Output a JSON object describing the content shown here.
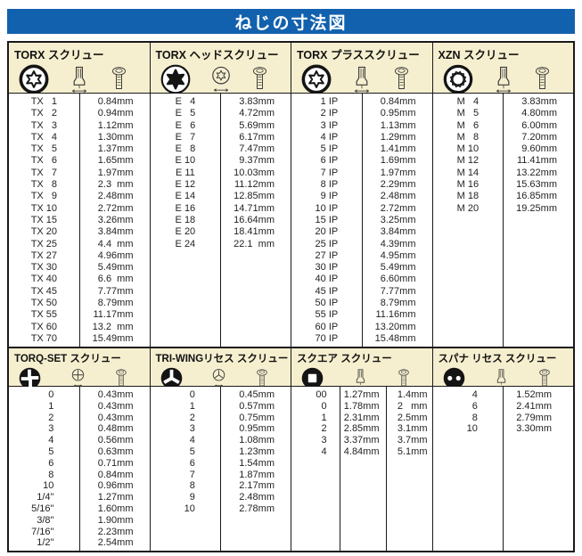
{
  "page_title": "ねじの寸法図",
  "colors": {
    "title_bar_bg": "#1261ae",
    "title_bar_text": "#ffffff",
    "column_header_bg": "#f6efcf",
    "border": "#1a1a1a",
    "cell_bg": "#ffffff",
    "text": "#232323"
  },
  "unit": "mm",
  "sections": [
    {
      "key": "top",
      "columns": [
        {
          "key": "torx",
          "title": "TORX スクリュー",
          "icons": [
            "torx-recess-icon",
            "torx-bit-icon",
            "torx-screw-icon"
          ],
          "cols": 2,
          "rows": [
            [
              "TX   1",
              "0.84mm"
            ],
            [
              "TX   2",
              "0.94mm"
            ],
            [
              "TX   3",
              "1.12mm"
            ],
            [
              "TX   4",
              "1.30mm"
            ],
            [
              "TX   5",
              "1.37mm"
            ],
            [
              "TX   6",
              "1.65mm"
            ],
            [
              "TX   7",
              "1.97mm"
            ],
            [
              "TX   8",
              "2.3  mm"
            ],
            [
              "TX   9",
              "2.48mm"
            ],
            [
              "TX 10",
              "2.72mm"
            ],
            [
              "TX 15",
              "3.26mm"
            ],
            [
              "TX 20",
              "3.84mm"
            ],
            [
              "TX 25",
              "4.4  mm"
            ],
            [
              "TX 27",
              "4.96mm"
            ],
            [
              "TX 30",
              "5.49mm"
            ],
            [
              "TX 40",
              "6.6  mm"
            ],
            [
              "TX 45",
              "7.77mm"
            ],
            [
              "TX 50",
              "8.79mm"
            ],
            [
              "TX 55",
              "11.17mm"
            ],
            [
              "TX 60",
              "13.2  mm"
            ],
            [
              "TX 70",
              "15.49mm"
            ]
          ]
        },
        {
          "key": "torx-head",
          "title": "TORX ヘッドスクリュー",
          "icons": [
            "torx-head-recess-icon",
            "torx-socket-icon",
            "torx-bolt-icon"
          ],
          "cols": 2,
          "rows": [
            [
              "E   4",
              "3.83mm"
            ],
            [
              "E   5",
              "4.72mm"
            ],
            [
              "E   6",
              "5.69mm"
            ],
            [
              "E   7",
              "6.17mm"
            ],
            [
              "E   8",
              "7.47mm"
            ],
            [
              "E 10",
              "9.37mm"
            ],
            [
              "E 11",
              "10.03mm"
            ],
            [
              "E 12",
              "11.12mm"
            ],
            [
              "E 14",
              "12.85mm"
            ],
            [
              "E 16",
              "14.71mm"
            ],
            [
              "E 18",
              "16.64mm"
            ],
            [
              "E 20",
              "18.41mm"
            ],
            [
              "E 24",
              "22.1  mm"
            ]
          ]
        },
        {
          "key": "torx-plus",
          "title": "TORX プラススクリュー",
          "icons": [
            "torx-plus-recess-icon",
            "torx-plus-bit-icon",
            "torx-plus-screw-icon"
          ],
          "cols": 2,
          "rows": [
            [
              "  1 IP",
              "0.84mm"
            ],
            [
              "  2 IP",
              "0.95mm"
            ],
            [
              "  3 IP",
              "1.13mm"
            ],
            [
              "  4 IP",
              "1.29mm"
            ],
            [
              "  5 IP",
              "1.41mm"
            ],
            [
              "  6 IP",
              "1.69mm"
            ],
            [
              "  7 IP",
              "1.97mm"
            ],
            [
              "  8 IP",
              "2.29mm"
            ],
            [
              "  9 IP",
              "2.48mm"
            ],
            [
              "10 IP",
              "2.72mm"
            ],
            [
              "15 IP",
              "3.25mm"
            ],
            [
              "20 IP",
              "3.84mm"
            ],
            [
              "25 IP",
              "4.39mm"
            ],
            [
              "27 IP",
              "4.95mm"
            ],
            [
              "30 IP",
              "5.49mm"
            ],
            [
              "40 IP",
              "6.60mm"
            ],
            [
              "45 IP",
              "7.77mm"
            ],
            [
              "50 IP",
              "8.79mm"
            ],
            [
              "55 IP",
              "11.16mm"
            ],
            [
              "60 IP",
              "13.20mm"
            ],
            [
              "70 IP",
              "15.48mm"
            ]
          ]
        },
        {
          "key": "xzn",
          "title": "XZN スクリュー",
          "icons": [
            "xzn-recess-icon",
            "xzn-bit-icon",
            "xzn-screw-icon"
          ],
          "cols": 2,
          "rows": [
            [
              "M   4",
              "3.83mm"
            ],
            [
              "M   5",
              "4.80mm"
            ],
            [
              "M   6",
              "6.00mm"
            ],
            [
              "M   8",
              "7.20mm"
            ],
            [
              "M 10",
              "9.60mm"
            ],
            [
              "M 12",
              "11.41mm"
            ],
            [
              "M 14",
              "13.22mm"
            ],
            [
              "M 16",
              "15.63mm"
            ],
            [
              "M 18",
              "16.85mm"
            ],
            [
              "M 20",
              "19.25mm"
            ]
          ]
        }
      ]
    },
    {
      "key": "bottom",
      "columns": [
        {
          "key": "torq-set",
          "title": "TORQ-SET スクリュー",
          "icons": [
            "torq-set-recess-icon",
            "torq-set-gauge-icon",
            "torq-set-screw-icon"
          ],
          "cols": 2,
          "rows": [
            [
              "0",
              "0.43mm"
            ],
            [
              "1",
              "0.43mm"
            ],
            [
              "2",
              "0.43mm"
            ],
            [
              "3",
              "0.48mm"
            ],
            [
              "4",
              "0.56mm"
            ],
            [
              "5",
              "0.63mm"
            ],
            [
              "6",
              "0.71mm"
            ],
            [
              "8",
              "0.84mm"
            ],
            [
              "10",
              "0.96mm"
            ],
            [
              "1/4\"",
              "1.27mm"
            ],
            [
              "5/16\"",
              "1.60mm"
            ],
            [
              "3/8\"",
              "1.90mm"
            ],
            [
              "7/16\"",
              "2.23mm"
            ],
            [
              "1/2\"",
              "2.54mm"
            ]
          ]
        },
        {
          "key": "tri-wing",
          "title": "TRI-WINGリセス スクリュー",
          "icons": [
            "tri-wing-recess-icon",
            "tri-wing-gauge-icon",
            "tri-wing-screw-icon"
          ],
          "cols": 2,
          "rows": [
            [
              "0",
              "0.45mm"
            ],
            [
              "1",
              "0.57mm"
            ],
            [
              "2",
              "0.75mm"
            ],
            [
              "3",
              "0.95mm"
            ],
            [
              "4",
              "1.08mm"
            ],
            [
              "5",
              "1.23mm"
            ],
            [
              "6",
              "1.54mm"
            ],
            [
              "7",
              "1.87mm"
            ],
            [
              "8",
              "2.17mm"
            ],
            [
              "9",
              "2.48mm"
            ],
            [
              "10",
              "2.78mm"
            ]
          ]
        },
        {
          "key": "square",
          "title": "スクエア スクリュー",
          "icons": [
            "square-recess-icon",
            "square-bit-icon",
            "square-screw-icon"
          ],
          "cols": 3,
          "rows": [
            [
              "00",
              "1.27mm",
              "1.4mm"
            ],
            [
              "0",
              "1.78mm",
              "2   mm"
            ],
            [
              "1",
              "2.31mm",
              "2.5mm"
            ],
            [
              "2",
              "2.85mm",
              "3.1mm"
            ],
            [
              "3",
              "3.37mm",
              "3.7mm"
            ],
            [
              "4",
              "4.84mm",
              "5.1mm"
            ]
          ]
        },
        {
          "key": "spanner",
          "title": "スパナ リセス スクリュー",
          "icons": [
            "spanner-recess-icon",
            "spanner-bit-icon",
            "spanner-screw-icon"
          ],
          "cols": 2,
          "rows": [
            [
              "4",
              "1.52mm"
            ],
            [
              "6",
              "2.41mm"
            ],
            [
              "8",
              "2.79mm"
            ],
            [
              "10",
              "3.30mm"
            ]
          ]
        }
      ]
    }
  ]
}
